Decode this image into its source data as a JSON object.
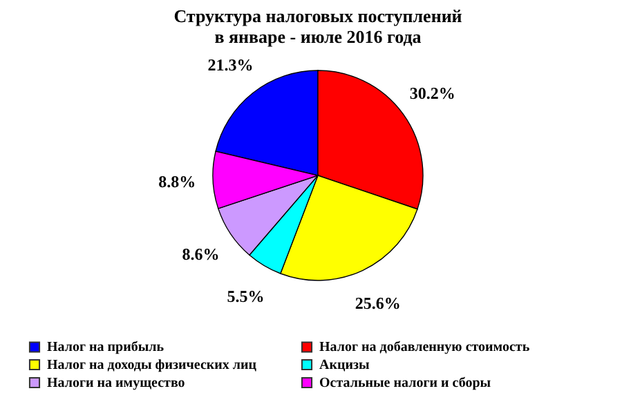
{
  "chart_data": {
    "type": "pie",
    "title": [
      "Структура налоговых поступлений",
      "в январе - июле 2016 года"
    ],
    "categories": [
      "Налог на прибыль",
      "Налог на добавленную стоимость",
      "Налог на доходы физических лиц",
      "Акцизы",
      "Налоги на имущество",
      "Остальные налоги и сборы"
    ],
    "values": [
      21.3,
      30.2,
      25.6,
      5.5,
      8.6,
      8.8
    ],
    "value_labels": [
      "21.3%",
      "30.2%",
      "25.6%",
      "5.5%",
      "8.6%",
      "8.8%"
    ],
    "colors": [
      "#0000ff",
      "#ff0000",
      "#ffff00",
      "#00ffff",
      "#cc99ff",
      "#ff00ff"
    ],
    "legend": "bottom"
  }
}
